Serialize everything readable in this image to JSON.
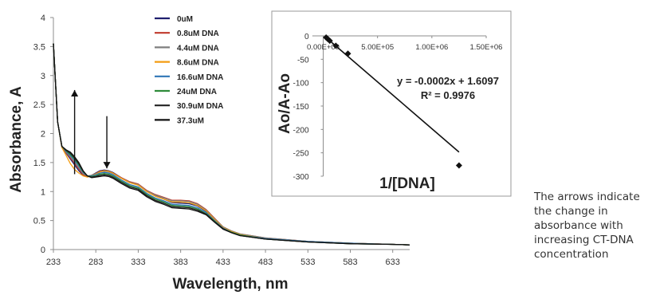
{
  "chart_data": [
    {
      "type": "line",
      "xlabel": "Wavelength, nm",
      "ylabel": "Absorbance, A",
      "xlim": [
        233,
        653
      ],
      "ylim": [
        0,
        4
      ],
      "xticks": [
        233,
        283,
        333,
        383,
        433,
        483,
        533,
        583,
        633
      ],
      "yticks": [
        0,
        0.5,
        1,
        1.5,
        2,
        2.5,
        3,
        3.5,
        4
      ],
      "legend_position": "top-center",
      "x": [
        233,
        238,
        243,
        248,
        253,
        258,
        263,
        268,
        273,
        278,
        283,
        288,
        293,
        298,
        303,
        313,
        323,
        333,
        343,
        353,
        363,
        373,
        383,
        393,
        403,
        413,
        423,
        433,
        443,
        453,
        483,
        533,
        583,
        633,
        653
      ],
      "series": [
        {
          "name": "0uM",
          "color": "#1f1f6e",
          "values": [
            3.55,
            2.2,
            1.78,
            1.66,
            1.56,
            1.46,
            1.36,
            1.28,
            1.26,
            1.28,
            1.32,
            1.36,
            1.37,
            1.36,
            1.33,
            1.24,
            1.16,
            1.12,
            1.01,
            0.93,
            0.87,
            0.81,
            0.8,
            0.79,
            0.75,
            0.66,
            0.52,
            0.38,
            0.31,
            0.26,
            0.19,
            0.14,
            0.11,
            0.09,
            0.08
          ]
        },
        {
          "name": "0.8uM DNA",
          "color": "#c0392b",
          "values": [
            3.55,
            2.2,
            1.78,
            1.67,
            1.58,
            1.49,
            1.39,
            1.29,
            1.26,
            1.28,
            1.31,
            1.35,
            1.36,
            1.35,
            1.32,
            1.24,
            1.17,
            1.13,
            1.02,
            0.95,
            0.9,
            0.85,
            0.85,
            0.84,
            0.79,
            0.69,
            0.54,
            0.39,
            0.32,
            0.27,
            0.2,
            0.14,
            0.11,
            0.09,
            0.08
          ]
        },
        {
          "name": "4.4uM DNA",
          "color": "#7f7f7f",
          "values": [
            3.55,
            2.2,
            1.78,
            1.68,
            1.6,
            1.51,
            1.41,
            1.31,
            1.27,
            1.28,
            1.31,
            1.34,
            1.35,
            1.34,
            1.31,
            1.23,
            1.16,
            1.12,
            1.01,
            0.94,
            0.89,
            0.84,
            0.84,
            0.83,
            0.78,
            0.68,
            0.53,
            0.39,
            0.32,
            0.27,
            0.2,
            0.14,
            0.11,
            0.09,
            0.08
          ]
        },
        {
          "name": "8.6uM DNA",
          "color": "#f39c12",
          "values": [
            3.55,
            2.2,
            1.76,
            1.62,
            1.48,
            1.38,
            1.32,
            1.27,
            1.25,
            1.27,
            1.3,
            1.34,
            1.36,
            1.35,
            1.32,
            1.23,
            1.15,
            1.11,
            1.0,
            0.92,
            0.87,
            0.82,
            0.82,
            0.81,
            0.76,
            0.67,
            0.52,
            0.38,
            0.31,
            0.26,
            0.19,
            0.14,
            0.11,
            0.09,
            0.08
          ]
        },
        {
          "name": "16.6uM DNA",
          "color": "#2e75b6",
          "values": [
            3.55,
            2.2,
            1.78,
            1.69,
            1.62,
            1.54,
            1.44,
            1.33,
            1.27,
            1.27,
            1.29,
            1.32,
            1.33,
            1.32,
            1.29,
            1.2,
            1.12,
            1.08,
            0.97,
            0.89,
            0.84,
            0.78,
            0.77,
            0.76,
            0.72,
            0.64,
            0.5,
            0.37,
            0.3,
            0.25,
            0.19,
            0.14,
            0.11,
            0.09,
            0.08
          ]
        },
        {
          "name": "24uM DNA",
          "color": "#2e8b3a",
          "values": [
            3.55,
            2.2,
            1.78,
            1.7,
            1.64,
            1.56,
            1.46,
            1.34,
            1.27,
            1.26,
            1.27,
            1.3,
            1.31,
            1.3,
            1.27,
            1.18,
            1.1,
            1.06,
            0.95,
            0.87,
            0.82,
            0.76,
            0.75,
            0.74,
            0.7,
            0.62,
            0.49,
            0.36,
            0.3,
            0.25,
            0.18,
            0.13,
            0.1,
            0.09,
            0.08
          ]
        },
        {
          "name": "30.9uM DNA",
          "color": "#222222",
          "values": [
            3.55,
            2.2,
            1.78,
            1.71,
            1.66,
            1.58,
            1.48,
            1.35,
            1.27,
            1.25,
            1.26,
            1.28,
            1.29,
            1.28,
            1.25,
            1.16,
            1.08,
            1.04,
            0.93,
            0.85,
            0.8,
            0.74,
            0.73,
            0.72,
            0.68,
            0.61,
            0.48,
            0.36,
            0.29,
            0.24,
            0.18,
            0.13,
            0.1,
            0.09,
            0.08
          ]
        },
        {
          "name": "37.3uM",
          "color": "#111111",
          "values": [
            3.55,
            2.2,
            1.78,
            1.72,
            1.68,
            1.6,
            1.5,
            1.36,
            1.27,
            1.24,
            1.25,
            1.26,
            1.27,
            1.26,
            1.23,
            1.14,
            1.06,
            1.02,
            0.91,
            0.83,
            0.78,
            0.72,
            0.71,
            0.7,
            0.66,
            0.6,
            0.47,
            0.35,
            0.29,
            0.24,
            0.18,
            0.13,
            0.1,
            0.09,
            0.08
          ]
        }
      ],
      "annotations": [
        {
          "type": "arrow-up",
          "x": 258,
          "y_from": 1.3,
          "y_to": 2.75
        },
        {
          "type": "arrow-down",
          "x": 296,
          "y_from": 2.3,
          "y_to": 1.4
        }
      ]
    },
    {
      "type": "scatter",
      "xlabel": "1/[DNA]",
      "ylabel": "Ao/A-Ao",
      "xlim": [
        -100000,
        1500000
      ],
      "ylim": [
        -300,
        0
      ],
      "xticks": [
        0,
        500000,
        1000000,
        1500000
      ],
      "xtick_labels": [
        "0.00E+00",
        "5.00E+05",
        "1.00E+06",
        "1.50E+06"
      ],
      "yticks": [
        0,
        -50,
        -100,
        -150,
        -200,
        -250,
        -300
      ],
      "points": [
        {
          "x": 26800,
          "y": -3.5
        },
        {
          "x": 41700,
          "y": -6.5
        },
        {
          "x": 60200,
          "y": -10.5
        },
        {
          "x": 116300,
          "y": -21
        },
        {
          "x": 227300,
          "y": -38
        },
        {
          "x": 1250000,
          "y": -277
        }
      ],
      "trendline": {
        "slope": -0.0002,
        "intercept": 1.6097
      },
      "equation": "y = -0.0002x + 1.6097",
      "r2": "R² = 0.9976"
    }
  ],
  "note": "The arrows indicate the change in absorbance with increasing CT-DNA concentration"
}
